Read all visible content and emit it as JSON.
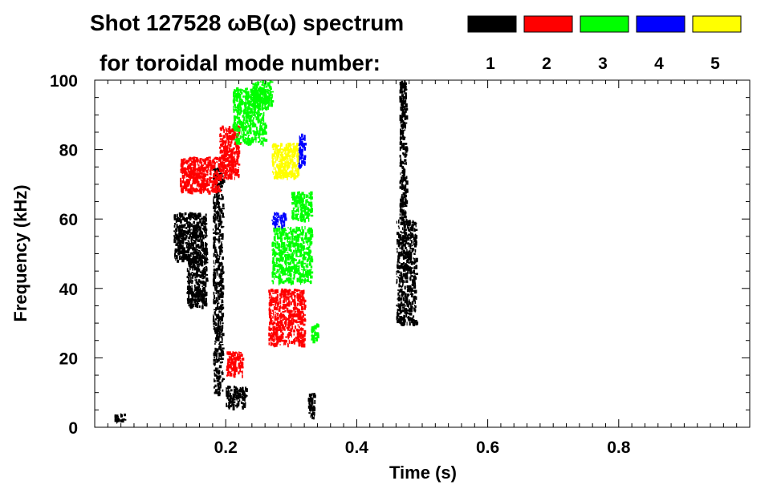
{
  "chart_data": {
    "type": "scatter",
    "title_line1": "Shot 127528 ωB(ω) spectrum",
    "title_line2": "for toroidal mode number:",
    "xlabel": "Time (s)",
    "ylabel": "Frequency (kHz)",
    "xlim": [
      0.0,
      1.0
    ],
    "ylim": [
      0,
      100
    ],
    "x_ticks": [
      0.2,
      0.4,
      0.6,
      0.8
    ],
    "x_tick_labels": [
      "0.2",
      "0.4",
      "0.6",
      "0.8"
    ],
    "y_ticks": [
      0,
      20,
      40,
      60,
      80,
      100
    ],
    "y_tick_labels": [
      "0",
      "20",
      "40",
      "60",
      "80",
      "100"
    ],
    "grid": false,
    "legend_position": "top-right",
    "legend": [
      {
        "label": "1",
        "color": "#000000"
      },
      {
        "label": "2",
        "color": "#ff0000"
      },
      {
        "label": "3",
        "color": "#00ff00"
      },
      {
        "label": "4",
        "color": "#0000ff"
      },
      {
        "label": "5",
        "color": "#ffff00"
      }
    ],
    "series": [
      {
        "name": "1",
        "color": "#000000",
        "regions": [
          {
            "t": [
              0.12,
              0.17
            ],
            "f": [
              48,
              62
            ]
          },
          {
            "t": [
              0.14,
              0.17
            ],
            "f": [
              35,
              50
            ]
          },
          {
            "t": [
              0.18,
              0.195
            ],
            "f": [
              10,
              75
            ]
          },
          {
            "t": [
              0.2,
              0.23
            ],
            "f": [
              6,
              12
            ]
          },
          {
            "t": [
              0.46,
              0.49
            ],
            "f": [
              30,
              60
            ]
          },
          {
            "t": [
              0.465,
              0.475
            ],
            "f": [
              60,
              100
            ]
          },
          {
            "t": [
              0.325,
              0.335
            ],
            "f": [
              3,
              10
            ]
          },
          {
            "t": [
              0.03,
              0.045
            ],
            "f": [
              2,
              4
            ]
          }
        ]
      },
      {
        "name": "2",
        "color": "#ff0000",
        "regions": [
          {
            "t": [
              0.13,
              0.19
            ],
            "f": [
              68,
              78
            ]
          },
          {
            "t": [
              0.19,
              0.22
            ],
            "f": [
              72,
              87
            ]
          },
          {
            "t": [
              0.265,
              0.32
            ],
            "f": [
              24,
              40
            ]
          },
          {
            "t": [
              0.2,
              0.225
            ],
            "f": [
              15,
              22
            ]
          }
        ]
      },
      {
        "name": "3",
        "color": "#00ff00",
        "regions": [
          {
            "t": [
              0.21,
              0.26
            ],
            "f": [
              82,
              98
            ]
          },
          {
            "t": [
              0.24,
              0.27
            ],
            "f": [
              92,
              100
            ]
          },
          {
            "t": [
              0.27,
              0.33
            ],
            "f": [
              42,
              58
            ]
          },
          {
            "t": [
              0.33,
              0.34
            ],
            "f": [
              25,
              30
            ]
          },
          {
            "t": [
              0.3,
              0.33
            ],
            "f": [
              60,
              68
            ]
          }
        ]
      },
      {
        "name": "4",
        "color": "#0000ff",
        "regions": [
          {
            "t": [
              0.31,
              0.32
            ],
            "f": [
              75,
              85
            ]
          },
          {
            "t": [
              0.27,
              0.29
            ],
            "f": [
              58,
              62
            ]
          }
        ]
      },
      {
        "name": "5",
        "color": "#ffff00",
        "regions": [
          {
            "t": [
              0.27,
              0.31
            ],
            "f": [
              72,
              82
            ]
          }
        ]
      }
    ]
  }
}
